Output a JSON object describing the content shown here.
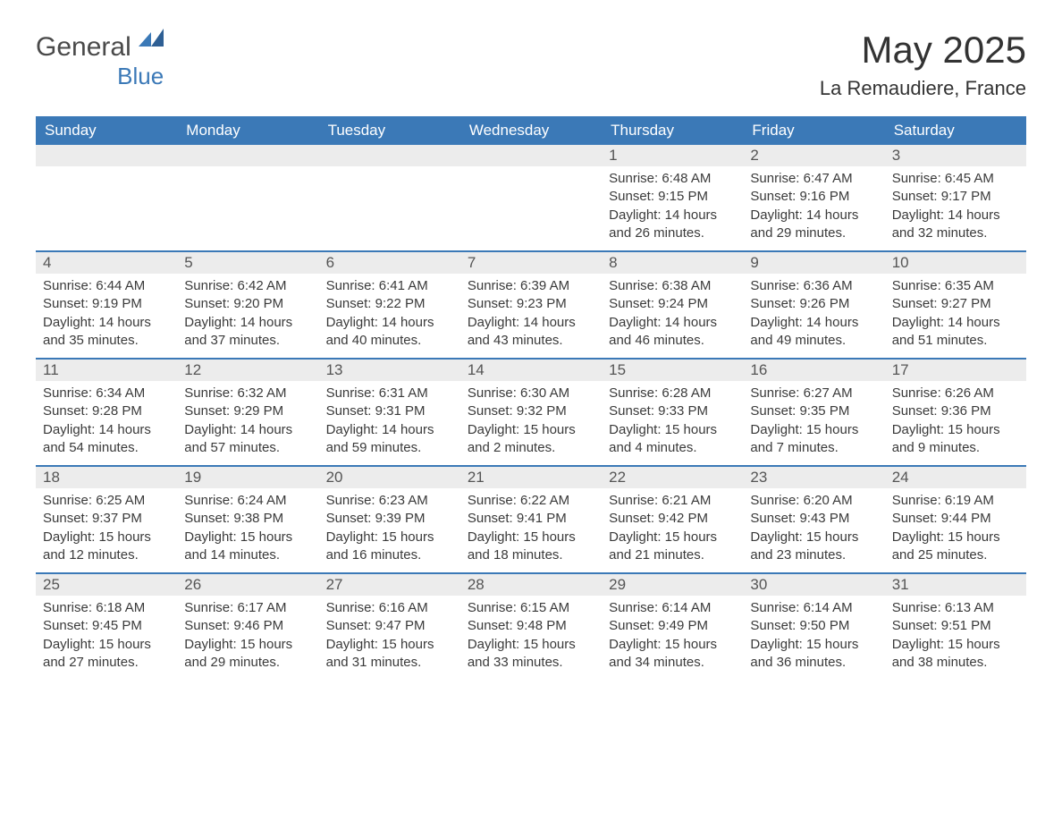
{
  "logo": {
    "main": "General",
    "sub": "Blue"
  },
  "title": "May 2025",
  "location": "La Remaudiere, France",
  "colors": {
    "header_bg": "#3b79b7",
    "header_text": "#ffffff",
    "daynum_bg": "#ececec",
    "text": "#3a3a3a",
    "rule": "#3b79b7",
    "logo_sub": "#3b79b7"
  },
  "typography": {
    "title_fontsize": 42,
    "location_fontsize": 22,
    "dayheader_fontsize": 17,
    "body_fontsize": 15
  },
  "layout": {
    "columns": 7,
    "rows": 5
  },
  "day_names": [
    "Sunday",
    "Monday",
    "Tuesday",
    "Wednesday",
    "Thursday",
    "Friday",
    "Saturday"
  ],
  "weeks": [
    [
      {
        "blank": true
      },
      {
        "blank": true
      },
      {
        "blank": true
      },
      {
        "blank": true
      },
      {
        "day": "1",
        "sunrise": "Sunrise: 6:48 AM",
        "sunset": "Sunset: 9:15 PM",
        "daylight1": "Daylight: 14 hours",
        "daylight2": "and 26 minutes."
      },
      {
        "day": "2",
        "sunrise": "Sunrise: 6:47 AM",
        "sunset": "Sunset: 9:16 PM",
        "daylight1": "Daylight: 14 hours",
        "daylight2": "and 29 minutes."
      },
      {
        "day": "3",
        "sunrise": "Sunrise: 6:45 AM",
        "sunset": "Sunset: 9:17 PM",
        "daylight1": "Daylight: 14 hours",
        "daylight2": "and 32 minutes."
      }
    ],
    [
      {
        "day": "4",
        "sunrise": "Sunrise: 6:44 AM",
        "sunset": "Sunset: 9:19 PM",
        "daylight1": "Daylight: 14 hours",
        "daylight2": "and 35 minutes."
      },
      {
        "day": "5",
        "sunrise": "Sunrise: 6:42 AM",
        "sunset": "Sunset: 9:20 PM",
        "daylight1": "Daylight: 14 hours",
        "daylight2": "and 37 minutes."
      },
      {
        "day": "6",
        "sunrise": "Sunrise: 6:41 AM",
        "sunset": "Sunset: 9:22 PM",
        "daylight1": "Daylight: 14 hours",
        "daylight2": "and 40 minutes."
      },
      {
        "day": "7",
        "sunrise": "Sunrise: 6:39 AM",
        "sunset": "Sunset: 9:23 PM",
        "daylight1": "Daylight: 14 hours",
        "daylight2": "and 43 minutes."
      },
      {
        "day": "8",
        "sunrise": "Sunrise: 6:38 AM",
        "sunset": "Sunset: 9:24 PM",
        "daylight1": "Daylight: 14 hours",
        "daylight2": "and 46 minutes."
      },
      {
        "day": "9",
        "sunrise": "Sunrise: 6:36 AM",
        "sunset": "Sunset: 9:26 PM",
        "daylight1": "Daylight: 14 hours",
        "daylight2": "and 49 minutes."
      },
      {
        "day": "10",
        "sunrise": "Sunrise: 6:35 AM",
        "sunset": "Sunset: 9:27 PM",
        "daylight1": "Daylight: 14 hours",
        "daylight2": "and 51 minutes."
      }
    ],
    [
      {
        "day": "11",
        "sunrise": "Sunrise: 6:34 AM",
        "sunset": "Sunset: 9:28 PM",
        "daylight1": "Daylight: 14 hours",
        "daylight2": "and 54 minutes."
      },
      {
        "day": "12",
        "sunrise": "Sunrise: 6:32 AM",
        "sunset": "Sunset: 9:29 PM",
        "daylight1": "Daylight: 14 hours",
        "daylight2": "and 57 minutes."
      },
      {
        "day": "13",
        "sunrise": "Sunrise: 6:31 AM",
        "sunset": "Sunset: 9:31 PM",
        "daylight1": "Daylight: 14 hours",
        "daylight2": "and 59 minutes."
      },
      {
        "day": "14",
        "sunrise": "Sunrise: 6:30 AM",
        "sunset": "Sunset: 9:32 PM",
        "daylight1": "Daylight: 15 hours",
        "daylight2": "and 2 minutes."
      },
      {
        "day": "15",
        "sunrise": "Sunrise: 6:28 AM",
        "sunset": "Sunset: 9:33 PM",
        "daylight1": "Daylight: 15 hours",
        "daylight2": "and 4 minutes."
      },
      {
        "day": "16",
        "sunrise": "Sunrise: 6:27 AM",
        "sunset": "Sunset: 9:35 PM",
        "daylight1": "Daylight: 15 hours",
        "daylight2": "and 7 minutes."
      },
      {
        "day": "17",
        "sunrise": "Sunrise: 6:26 AM",
        "sunset": "Sunset: 9:36 PM",
        "daylight1": "Daylight: 15 hours",
        "daylight2": "and 9 minutes."
      }
    ],
    [
      {
        "day": "18",
        "sunrise": "Sunrise: 6:25 AM",
        "sunset": "Sunset: 9:37 PM",
        "daylight1": "Daylight: 15 hours",
        "daylight2": "and 12 minutes."
      },
      {
        "day": "19",
        "sunrise": "Sunrise: 6:24 AM",
        "sunset": "Sunset: 9:38 PM",
        "daylight1": "Daylight: 15 hours",
        "daylight2": "and 14 minutes."
      },
      {
        "day": "20",
        "sunrise": "Sunrise: 6:23 AM",
        "sunset": "Sunset: 9:39 PM",
        "daylight1": "Daylight: 15 hours",
        "daylight2": "and 16 minutes."
      },
      {
        "day": "21",
        "sunrise": "Sunrise: 6:22 AM",
        "sunset": "Sunset: 9:41 PM",
        "daylight1": "Daylight: 15 hours",
        "daylight2": "and 18 minutes."
      },
      {
        "day": "22",
        "sunrise": "Sunrise: 6:21 AM",
        "sunset": "Sunset: 9:42 PM",
        "daylight1": "Daylight: 15 hours",
        "daylight2": "and 21 minutes."
      },
      {
        "day": "23",
        "sunrise": "Sunrise: 6:20 AM",
        "sunset": "Sunset: 9:43 PM",
        "daylight1": "Daylight: 15 hours",
        "daylight2": "and 23 minutes."
      },
      {
        "day": "24",
        "sunrise": "Sunrise: 6:19 AM",
        "sunset": "Sunset: 9:44 PM",
        "daylight1": "Daylight: 15 hours",
        "daylight2": "and 25 minutes."
      }
    ],
    [
      {
        "day": "25",
        "sunrise": "Sunrise: 6:18 AM",
        "sunset": "Sunset: 9:45 PM",
        "daylight1": "Daylight: 15 hours",
        "daylight2": "and 27 minutes."
      },
      {
        "day": "26",
        "sunrise": "Sunrise: 6:17 AM",
        "sunset": "Sunset: 9:46 PM",
        "daylight1": "Daylight: 15 hours",
        "daylight2": "and 29 minutes."
      },
      {
        "day": "27",
        "sunrise": "Sunrise: 6:16 AM",
        "sunset": "Sunset: 9:47 PM",
        "daylight1": "Daylight: 15 hours",
        "daylight2": "and 31 minutes."
      },
      {
        "day": "28",
        "sunrise": "Sunrise: 6:15 AM",
        "sunset": "Sunset: 9:48 PM",
        "daylight1": "Daylight: 15 hours",
        "daylight2": "and 33 minutes."
      },
      {
        "day": "29",
        "sunrise": "Sunrise: 6:14 AM",
        "sunset": "Sunset: 9:49 PM",
        "daylight1": "Daylight: 15 hours",
        "daylight2": "and 34 minutes."
      },
      {
        "day": "30",
        "sunrise": "Sunrise: 6:14 AM",
        "sunset": "Sunset: 9:50 PM",
        "daylight1": "Daylight: 15 hours",
        "daylight2": "and 36 minutes."
      },
      {
        "day": "31",
        "sunrise": "Sunrise: 6:13 AM",
        "sunset": "Sunset: 9:51 PM",
        "daylight1": "Daylight: 15 hours",
        "daylight2": "and 38 minutes."
      }
    ]
  ]
}
